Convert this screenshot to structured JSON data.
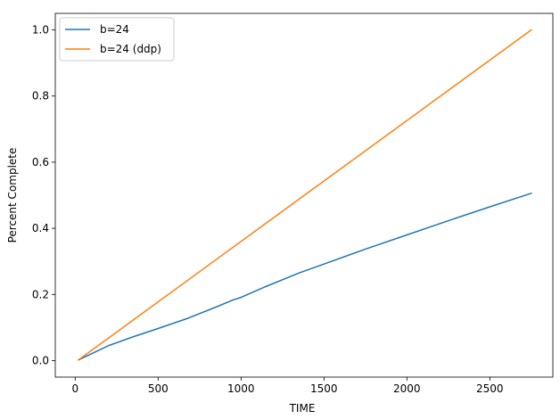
{
  "chart_data": {
    "type": "line",
    "title": "",
    "xlabel": "TIME",
    "ylabel": "Percent Complete",
    "xlim": [
      -120,
      2880
    ],
    "ylim": [
      -0.05,
      1.05
    ],
    "xticks": [
      0,
      500,
      1000,
      1500,
      2000,
      2500
    ],
    "xtick_labels": [
      "0",
      "500",
      "1000",
      "1500",
      "2000",
      "2500"
    ],
    "yticks": [
      0.0,
      0.2,
      0.4,
      0.6,
      0.8,
      1.0
    ],
    "ytick_labels": [
      "0.0",
      "0.2",
      "0.4",
      "0.6",
      "0.8",
      "1.0"
    ],
    "grid": false,
    "legend_position": "top-left",
    "series": [
      {
        "name": "b=24",
        "color": "#1f77b4",
        "x": [
          20,
          100,
          200,
          350,
          500,
          680,
          850,
          950,
          1000,
          1150,
          1350,
          1500,
          1750,
          2000,
          2250,
          2500,
          2750
        ],
        "y": [
          0.002,
          0.021,
          0.045,
          0.072,
          0.097,
          0.128,
          0.162,
          0.183,
          0.191,
          0.224,
          0.265,
          0.292,
          0.337,
          0.38,
          0.423,
          0.465,
          0.506
        ]
      },
      {
        "name": "b=24 (ddp)",
        "color": "#ff7f0e",
        "x": [
          20,
          2750
        ],
        "y": [
          0.002,
          1.0
        ]
      }
    ]
  }
}
